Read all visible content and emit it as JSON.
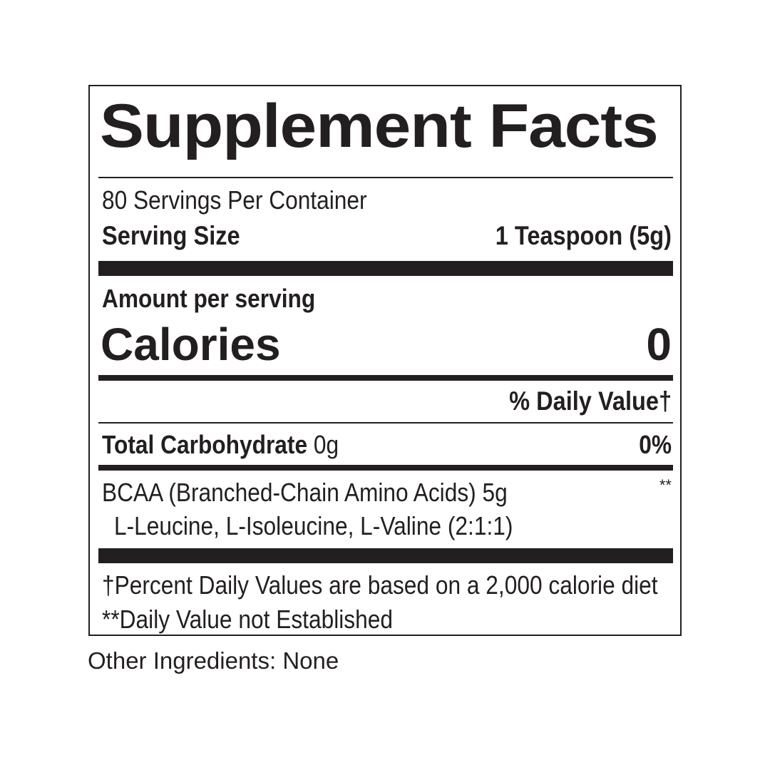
{
  "title": "Supplement Facts",
  "servings_per_container": "80 Servings Per Container",
  "serving_size_label": "Serving Size",
  "serving_size_value": "1 Teaspoon (5g)",
  "amount_per_serving": "Amount per serving",
  "calories_label": "Calories",
  "calories_value": "0",
  "daily_value_header": "% Daily Value†",
  "nutrients": [
    {
      "name": "Total Carbohydrate",
      "amount": "0g",
      "dv": "0%"
    }
  ],
  "bcaa": {
    "name": "BCAA (Branched-Chain Amino Acids) 5g",
    "dv": "**",
    "sub": "L-Leucine, L-Isoleucine, L-Valine (2:1:1)"
  },
  "footnotes": [
    "†Percent Daily Values are based on a 2,000 calorie diet",
    "**Daily Value not Established"
  ],
  "other_ingredients": "Other Ingredients: None"
}
